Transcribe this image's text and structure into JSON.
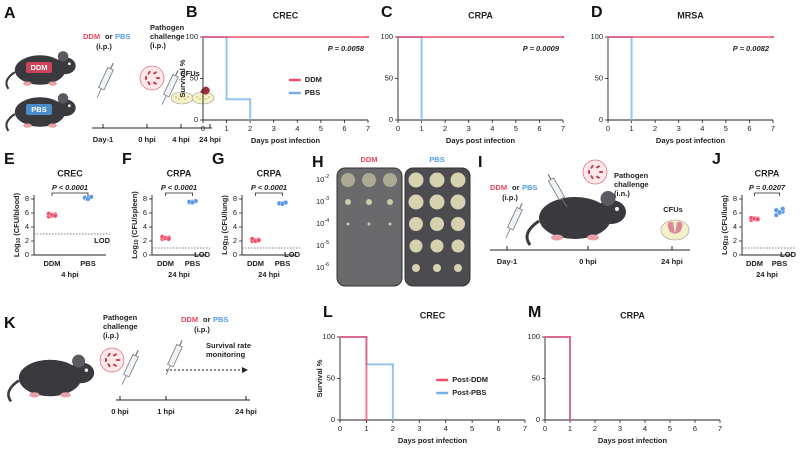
{
  "schematics": {
    "A": {
      "panel": "A",
      "agent_ddm": "DDM",
      "or": "or",
      "agent_pbs": "PBS",
      "route_treat": "(i.p.)",
      "challenge": [
        "Pathogen",
        "challenge"
      ],
      "route_challenge": "(i.p.)",
      "readout": "CFUs",
      "mouse_labels": [
        "DDM",
        "PBS"
      ],
      "timeline": [
        "Day-1",
        "0 hpi",
        "4 hpi",
        "24 hpi"
      ]
    },
    "H": {
      "panel": "H",
      "plates": [
        "DDM",
        "PBS"
      ],
      "dilution_base": "10",
      "dilution_exponents": [
        "-2",
        "-3",
        "-4",
        "-5",
        "-6"
      ]
    },
    "I": {
      "panel": "I",
      "agent_ddm": "DDM",
      "or": "or",
      "agent_pbs": "PBS",
      "route_treat": "(i.p.)",
      "challenge": [
        "Pathogen",
        "challenge"
      ],
      "route_challenge": "(i.n.)",
      "readout": "CFUs",
      "timeline": [
        "Day-1",
        "0 hpi",
        "24 hpi"
      ]
    },
    "K": {
      "panel": "K",
      "challenge": [
        "Pathogen",
        "challenge"
      ],
      "route_challenge": "(i.p.)",
      "agent_ddm": "DDM",
      "or": "or",
      "agent_pbs": "PBS",
      "route_treat": "(i.p.)",
      "monitor": [
        "Survival rate",
        "monitoring"
      ],
      "timeline": [
        "0 hpi",
        "1 hpi",
        "24 hpi"
      ]
    }
  },
  "chart_data": [
    {
      "type": "survival",
      "panel": "B",
      "title": "CREC",
      "annotation": "P = 0.0058",
      "ylabel": "Survival %",
      "xlabel": "Days post infection",
      "xlim": [
        0,
        7
      ],
      "xticks": [
        0,
        1,
        2,
        3,
        4,
        5,
        6,
        7
      ],
      "ylim": [
        0,
        100
      ],
      "yticks": [
        0,
        50,
        100
      ],
      "legend": true,
      "series": [
        {
          "name": "DDM",
          "color": "#ef4f6b",
          "x": [
            0,
            7
          ],
          "values": [
            100,
            100
          ]
        },
        {
          "name": "PBS",
          "color": "#74b0ea",
          "x": [
            0,
            1,
            2
          ],
          "values": [
            100,
            25,
            0
          ]
        }
      ]
    },
    {
      "type": "survival",
      "panel": "C",
      "title": "CRPA",
      "annotation": "P = 0.0009",
      "xlabel": "Days post infection",
      "xlim": [
        0,
        7
      ],
      "xticks": [
        0,
        1,
        2,
        3,
        4,
        5,
        6,
        7
      ],
      "ylim": [
        0,
        100
      ],
      "yticks": [
        0,
        50,
        100
      ],
      "legend": false,
      "series": [
        {
          "color": "#ef4f6b",
          "x": [
            0,
            7
          ],
          "values": [
            100,
            100
          ]
        },
        {
          "color": "#74b0ea",
          "x": [
            0,
            1
          ],
          "values": [
            100,
            0
          ]
        }
      ]
    },
    {
      "type": "survival",
      "panel": "D",
      "title": "MRSA",
      "annotation": "P = 0.0082",
      "xlabel": "Days post infection",
      "xlim": [
        0,
        7
      ],
      "xticks": [
        0,
        1,
        2,
        3,
        4,
        5,
        6,
        7
      ],
      "ylim": [
        0,
        100
      ],
      "yticks": [
        0,
        50,
        100
      ],
      "legend": false,
      "series": [
        {
          "color": "#ef4f6b",
          "x": [
            0,
            7
          ],
          "values": [
            100,
            100
          ]
        },
        {
          "color": "#74b0ea",
          "x": [
            0,
            1
          ],
          "values": [
            100,
            0
          ]
        }
      ]
    },
    {
      "type": "strip",
      "panel": "E",
      "title": "CREC",
      "annotation": "P < 0.0001",
      "ylabel": {
        "text": "Log",
        "sub": "10",
        "rest": "(CFU/blood)"
      },
      "categories": [
        "DDM",
        "PBS"
      ],
      "xsublabel": "4 hpi",
      "ylim": [
        0,
        10
      ],
      "yticks": [
        0,
        2,
        4,
        6,
        8
      ],
      "reference_line": {
        "value": 3,
        "label": "LOD"
      },
      "groups": [
        {
          "color": "#ef4f6b",
          "values": [
            5.5,
            5.6,
            5.8,
            5.9,
            5.7,
            5.6
          ]
        },
        {
          "color": "#5b95e6",
          "values": [
            8.1,
            8.2,
            8.3,
            8.2,
            8.0,
            8.3
          ]
        }
      ]
    },
    {
      "type": "strip",
      "panel": "F",
      "title": "CRPA",
      "annotation": "P < 0.0001",
      "ylabel": {
        "text": "Log",
        "sub": "10",
        "rest": "(CFU/spleen)"
      },
      "categories": [
        "DDM",
        "PBS"
      ],
      "xsublabel": "24 hpi",
      "ylim": [
        0,
        10
      ],
      "yticks": [
        0,
        2,
        4,
        6,
        8
      ],
      "reference_line": {
        "value": 1,
        "label": "LOD"
      },
      "groups": [
        {
          "color": "#ef4f6b",
          "values": [
            2.3,
            2.4,
            2.5,
            2.6,
            2.4,
            2.3
          ]
        },
        {
          "color": "#5b95e6",
          "values": [
            7.5,
            7.6,
            7.7,
            7.6,
            7.5
          ]
        }
      ]
    },
    {
      "type": "strip",
      "panel": "G",
      "title": "CRPA",
      "annotation": "P < 0.0001",
      "ylabel": {
        "text": "Log",
        "sub": "10",
        "rest": "(CFU/lung)"
      },
      "categories": [
        "DDM",
        "PBS"
      ],
      "xsublabel": "24 hpi",
      "ylim": [
        0,
        10
      ],
      "yticks": [
        0,
        2,
        4,
        6,
        8
      ],
      "reference_line": {
        "value": 1,
        "label": "LOD"
      },
      "groups": [
        {
          "color": "#ef4f6b",
          "values": [
            2.0,
            2.1,
            2.2,
            2.3,
            2.0,
            2.1
          ]
        },
        {
          "color": "#5b95e6",
          "values": [
            7.3,
            7.4,
            7.5,
            7.4,
            7.3
          ]
        }
      ]
    },
    {
      "type": "strip",
      "panel": "J",
      "title": "CRPA",
      "annotation": "P = 0.0207",
      "ylabel": {
        "text": "Log",
        "sub": "10",
        "rest": "(CFU/lung)"
      },
      "categories": [
        "DDM",
        "PBS"
      ],
      "xsublabel": "24 hpi",
      "ylim": [
        0,
        10
      ],
      "yticks": [
        0,
        2,
        4,
        6,
        8
      ],
      "reference_line": {
        "value": 1,
        "label": "LOD"
      },
      "groups": [
        {
          "color": "#ef4f6b",
          "values": [
            5.0,
            5.1,
            5.2,
            5.3,
            5.2,
            5.1
          ]
        },
        {
          "color": "#5b95e6",
          "values": [
            5.7,
            6.0,
            6.2,
            6.4,
            6.1,
            6.6
          ]
        }
      ]
    },
    {
      "type": "survival",
      "panel": "L",
      "title": "CREC",
      "ylabel": "Survival %",
      "xlabel": "Days post infection",
      "xlim": [
        0,
        7
      ],
      "xticks": [
        0,
        1,
        2,
        3,
        4,
        5,
        6,
        7
      ],
      "ylim": [
        0,
        100
      ],
      "yticks": [
        0,
        50,
        100
      ],
      "legend": true,
      "series": [
        {
          "name": "Post-DDM",
          "color": "#ef4f6b",
          "x": [
            0,
            1
          ],
          "values": [
            100,
            0
          ]
        },
        {
          "name": "Post-PBS",
          "color": "#74b0ea",
          "x": [
            0,
            1,
            2
          ],
          "values": [
            100,
            67,
            0
          ]
        }
      ]
    },
    {
      "type": "survival",
      "panel": "M",
      "title": "CRPA",
      "xlabel": "Days post infection",
      "xlim": [
        0,
        7
      ],
      "xticks": [
        0,
        1,
        2,
        3,
        4,
        5,
        6,
        7
      ],
      "ylim": [
        0,
        100
      ],
      "yticks": [
        0,
        50,
        100
      ],
      "legend": false,
      "series": [
        {
          "color": "#ef4f6b",
          "x": [
            0,
            1
          ],
          "values": [
            100,
            0
          ]
        },
        {
          "color": "#74b0ea",
          "x": [
            0,
            1
          ],
          "values": [
            100,
            0
          ]
        }
      ]
    }
  ]
}
